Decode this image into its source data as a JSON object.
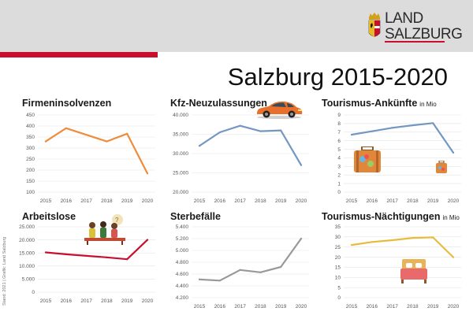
{
  "logo": {
    "line1": "LAND",
    "line2": "SALZBURG"
  },
  "page_title": "Salzburg 2015-2020",
  "credit": "Stand: 2021 | Grafik: Land Salzburg",
  "colors": {
    "accent_red": "#c8102e",
    "header_bg": "#dcdcdc"
  },
  "chart_data": [
    {
      "id": "firmeninsolvenzen",
      "type": "line",
      "title": "Firmeninsolvenzen",
      "unit": "",
      "categories": [
        "2015",
        "2016",
        "2017",
        "2018",
        "2019",
        "2020"
      ],
      "values": [
        330,
        390,
        360,
        330,
        365,
        185
      ],
      "yticks": [
        "450",
        "400",
        "350",
        "300",
        "250",
        "200",
        "150",
        "100"
      ],
      "ylim": [
        100,
        450
      ],
      "color": "#ee8c3c"
    },
    {
      "id": "kfz",
      "type": "line",
      "title": "Kfz-Neuzulassungen",
      "unit": "",
      "categories": [
        "2015",
        "2016",
        "2017",
        "2018",
        "2019",
        "2020"
      ],
      "values": [
        32000,
        35500,
        37200,
        35800,
        36000,
        27000
      ],
      "yticks": [
        "40.000",
        "35.000",
        "30.000",
        "25.000",
        "20.000"
      ],
      "ylim": [
        20000,
        40000
      ],
      "color": "#7397c2"
    },
    {
      "id": "ankuenfte",
      "type": "line",
      "title": "Tourismus-Ankünfte",
      "unit": "in Mio",
      "categories": [
        "2015",
        "2016",
        "2017",
        "2018",
        "2019",
        "2020"
      ],
      "values": [
        6.7,
        7.1,
        7.5,
        7.8,
        8.05,
        4.6
      ],
      "yticks": [
        "9",
        "8",
        "7",
        "6",
        "5",
        "4",
        "3",
        "2",
        "1",
        "0"
      ],
      "ylim": [
        0,
        9
      ],
      "color": "#7397c2"
    },
    {
      "id": "arbeitslose",
      "type": "line",
      "title": "Arbeitslose",
      "unit": "",
      "categories": [
        "2015",
        "2016",
        "2017",
        "2018",
        "2019",
        "2020"
      ],
      "values": [
        15200,
        14500,
        13900,
        13300,
        12600,
        20000
      ],
      "yticks": [
        "25.000",
        "20.000",
        "15.000",
        "10.000",
        "5.000",
        "0"
      ],
      "ylim": [
        0,
        25000
      ],
      "color": "#c8102e"
    },
    {
      "id": "sterbefaelle",
      "type": "line",
      "title": "Sterbefälle",
      "unit": "",
      "categories": [
        "2015",
        "2016",
        "2017",
        "2018",
        "2019",
        "2020"
      ],
      "values": [
        4510,
        4490,
        4670,
        4630,
        4720,
        5200
      ],
      "yticks": [
        "5.400",
        "5.200",
        "5.000",
        "4.800",
        "4.600",
        "4.400",
        "4.200"
      ],
      "ylim": [
        4200,
        5400
      ],
      "color": "#999999"
    },
    {
      "id": "naechtigungen",
      "type": "line",
      "title": "Tourismus-Nächtigungen",
      "unit": "in Mio",
      "categories": [
        "2015",
        "2016",
        "2017",
        "2018",
        "2019",
        "2020"
      ],
      "values": [
        26,
        27.5,
        28.4,
        29.5,
        29.8,
        20
      ],
      "yticks": [
        "35",
        "30",
        "25",
        "20",
        "15",
        "10",
        "5",
        "0"
      ],
      "ylim": [
        0,
        35
      ],
      "color": "#e9bb3d"
    }
  ]
}
